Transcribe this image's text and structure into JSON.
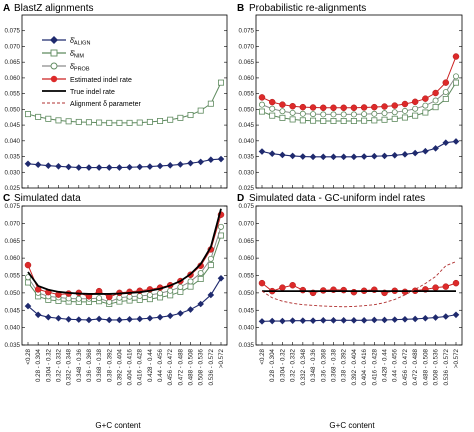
{
  "figure": {
    "xlabel": "G+C content",
    "legend": [
      "δ̂ ALIGN",
      "δ̂ NIM",
      "δ̂ PROB",
      "Estimated indel rate",
      "True indel rate",
      "Alignment δ parameter"
    ]
  },
  "chart_data": [
    {
      "type": "line",
      "panel": "A",
      "title": "BlastZ alignments",
      "ylim": [
        0.025,
        0.08
      ],
      "yticks": [
        "0.025",
        "0.030",
        "0.035",
        "0.040",
        "0.045",
        "0.050",
        "0.055",
        "0.060",
        "0.065",
        "0.070",
        "0.075"
      ],
      "categories": [
        "<0.28",
        "0.28 - 0.304",
        "0.304 - 0.32",
        "0.32 - 0.332",
        "0.332 - 0.348",
        "0.348 - 0.36",
        "0.36 - 0.368",
        "0.368 - 0.38",
        "0.38 - 0.392",
        "0.392 - 0.404",
        "0.404 - 0.416",
        "0.416 - 0.428",
        "0.428 - 0.44",
        "0.44 - 0.456",
        "0.456 - 0.472",
        "0.472 - 0.488",
        "0.488 - 0.508",
        "0.508 - 0.536",
        "0.536 - 0.572",
        ">0.572"
      ],
      "series": [
        {
          "name": "δ̂ ALIGN",
          "values": [
            0.0327,
            0.0324,
            0.0321,
            0.0319,
            0.0317,
            0.0315,
            0.0315,
            0.0315,
            0.0315,
            0.0315,
            0.0316,
            0.0317,
            0.0318,
            0.032,
            0.0322,
            0.0325,
            0.0329,
            0.0333,
            0.034,
            0.0342
          ]
        },
        {
          "name": "δ̂ NIM",
          "values": [
            0.0485,
            0.0476,
            0.047,
            0.0465,
            0.0462,
            0.046,
            0.0459,
            0.0458,
            0.0457,
            0.0457,
            0.0457,
            0.0458,
            0.046,
            0.0463,
            0.0467,
            0.0473,
            0.0482,
            0.0496,
            0.0518,
            0.0585
          ]
        }
      ]
    },
    {
      "type": "line",
      "panel": "B",
      "title": "Probabilistic re-alignments",
      "ylim": [
        0.025,
        0.08
      ],
      "yticks": [
        "0.025",
        "0.030",
        "0.035",
        "0.040",
        "0.045",
        "0.050",
        "0.055",
        "0.060",
        "0.065",
        "0.070",
        "0.075"
      ],
      "categories": [
        "<0.28",
        "0.28 - 0.304",
        "0.304 - 0.32",
        "0.32 - 0.332",
        "0.332 - 0.348",
        "0.348 - 0.36",
        "0.36 - 0.368",
        "0.368 - 0.38",
        "0.38 - 0.392",
        "0.392 - 0.404",
        "0.404 - 0.416",
        "0.416 - 0.428",
        "0.428 - 0.44",
        "0.44 - 0.456",
        "0.456 - 0.472",
        "0.472 - 0.488",
        "0.488 - 0.508",
        "0.508 - 0.536",
        "0.536 - 0.572",
        ">0.572"
      ],
      "series": [
        {
          "name": "δ̂ ALIGN",
          "values": [
            0.0366,
            0.0359,
            0.0355,
            0.0352,
            0.035,
            0.0349,
            0.0349,
            0.0349,
            0.0349,
            0.0349,
            0.035,
            0.0351,
            0.0352,
            0.0354,
            0.0357,
            0.0361,
            0.0367,
            0.0376,
            0.0394,
            0.0398
          ]
        },
        {
          "name": "δ̂ NIM",
          "values": [
            0.0493,
            0.048,
            0.0473,
            0.0468,
            0.0465,
            0.0464,
            0.0463,
            0.0463,
            0.0463,
            0.0463,
            0.0464,
            0.0465,
            0.0467,
            0.047,
            0.0474,
            0.048,
            0.049,
            0.0507,
            0.0533,
            0.0585
          ]
        },
        {
          "name": "δ̂ PROB",
          "values": [
            0.0515,
            0.0502,
            0.0494,
            0.0489,
            0.0486,
            0.0485,
            0.0484,
            0.0484,
            0.0484,
            0.0484,
            0.0485,
            0.0486,
            0.0488,
            0.0491,
            0.0495,
            0.0502,
            0.0512,
            0.0528,
            0.0555,
            0.0605
          ]
        },
        {
          "name": "Estimated indel rate",
          "values": [
            0.0538,
            0.0523,
            0.0515,
            0.051,
            0.0507,
            0.0506,
            0.0505,
            0.0505,
            0.0505,
            0.0505,
            0.0506,
            0.0507,
            0.0509,
            0.0512,
            0.0517,
            0.0524,
            0.0534,
            0.0552,
            0.0585,
            0.0668
          ]
        }
      ]
    },
    {
      "type": "line",
      "panel": "C",
      "title": "Simulated data",
      "ylim": [
        0.035,
        0.075
      ],
      "yticks": [
        "0.035",
        "0.040",
        "0.045",
        "0.050",
        "0.055",
        "0.060",
        "0.065",
        "0.070",
        "0.075"
      ],
      "categories": [
        "<0.28",
        "0.28 - 0.304",
        "0.304 - 0.32",
        "0.32 - 0.332",
        "0.332 - 0.348",
        "0.348 - 0.36",
        "0.36 - 0.368",
        "0.368 - 0.38",
        "0.38 - 0.392",
        "0.392 - 0.404",
        "0.404 - 0.416",
        "0.416 - 0.428",
        "0.428 - 0.44",
        "0.44 - 0.456",
        "0.456 - 0.472",
        "0.472 - 0.488",
        "0.488 - 0.508",
        "0.508 - 0.536",
        "0.536 - 0.572",
        ">0.572"
      ],
      "series": [
        {
          "name": "δ̂ ALIGN",
          "values": [
            0.0462,
            0.0437,
            0.043,
            0.0427,
            0.0424,
            0.0423,
            0.0422,
            0.0425,
            0.0422,
            0.0422,
            0.0424,
            0.0425,
            0.0427,
            0.043,
            0.0434,
            0.0441,
            0.0452,
            0.0468,
            0.0494,
            0.0542
          ]
        },
        {
          "name": "δ̂ NIM",
          "values": [
            0.053,
            0.049,
            0.048,
            0.0477,
            0.0475,
            0.0474,
            0.0474,
            0.0476,
            0.0468,
            0.0475,
            0.0478,
            0.048,
            0.0482,
            0.0487,
            0.0493,
            0.0503,
            0.0518,
            0.054,
            0.058,
            0.0665
          ]
        },
        {
          "name": "δ̂ PROB",
          "values": [
            0.0545,
            0.05,
            0.049,
            0.0487,
            0.0484,
            0.0483,
            0.0483,
            0.0485,
            0.0474,
            0.0486,
            0.0489,
            0.0491,
            0.0494,
            0.0499,
            0.0506,
            0.0517,
            0.0533,
            0.0557,
            0.0598,
            0.069
          ]
        },
        {
          "name": "Estimated indel rate",
          "values": [
            0.058,
            0.051,
            0.0502,
            0.0495,
            0.0498,
            0.05,
            0.049,
            0.0505,
            0.0488,
            0.05,
            0.0503,
            0.0506,
            0.051,
            0.0515,
            0.0522,
            0.0534,
            0.0552,
            0.0578,
            0.0625,
            0.0725
          ]
        },
        {
          "name": "True indel rate",
          "values": [
            0.056,
            0.052,
            0.0509,
            0.0503,
            0.05,
            0.0498,
            0.0497,
            0.0497,
            0.0497,
            0.0498,
            0.05,
            0.0502,
            0.0506,
            0.0512,
            0.0521,
            0.0534,
            0.0554,
            0.0583,
            0.0632,
            0.0742
          ]
        }
      ]
    },
    {
      "type": "line",
      "panel": "D",
      "title": "Simulated data - GC-uniform indel rates",
      "ylim": [
        0.035,
        0.075
      ],
      "yticks": [
        "0.035",
        "0.040",
        "0.045",
        "0.050",
        "0.055",
        "0.060",
        "0.065",
        "0.070",
        "0.075"
      ],
      "categories": [
        "<0.28",
        "0.28 - 0.304",
        "0.304 - 0.32",
        "0.32 - 0.332",
        "0.332 - 0.348",
        "0.348 - 0.36",
        "0.36 - 0.368",
        "0.368 - 0.38",
        "0.38 - 0.392",
        "0.392 - 0.404",
        "0.404 - 0.416",
        "0.416 - 0.428",
        "0.428 - 0.44",
        "0.44 - 0.456",
        "0.456 - 0.472",
        "0.472 - 0.488",
        "0.488 - 0.508",
        "0.508 - 0.536",
        "0.536 - 0.572",
        ">0.572"
      ],
      "series": [
        {
          "name": "δ̂ ALIGN",
          "values": [
            0.0418,
            0.0419,
            0.0419,
            0.042,
            0.042,
            0.042,
            0.0421,
            0.0421,
            0.0421,
            0.0421,
            0.0421,
            0.0422,
            0.0422,
            0.0423,
            0.0424,
            0.0425,
            0.0427,
            0.0429,
            0.0432,
            0.0437
          ]
        },
        {
          "name": "Estimated indel rate",
          "values": [
            0.0528,
            0.0505,
            0.0515,
            0.0522,
            0.0508,
            0.05,
            0.0507,
            0.0509,
            0.0508,
            0.0502,
            0.0506,
            0.0509,
            0.05,
            0.0506,
            0.0503,
            0.0506,
            0.051,
            0.0515,
            0.0518,
            0.0528
          ]
        },
        {
          "name": "True indel rate",
          "values": [
            0.0505,
            0.0505,
            0.0505,
            0.0505,
            0.0505,
            0.0505,
            0.0505,
            0.0505,
            0.0505,
            0.0505,
            0.0505,
            0.0505,
            0.0505,
            0.0505,
            0.0505,
            0.0505,
            0.0505,
            0.0505,
            0.0505,
            0.0505
          ]
        },
        {
          "name": "Alignment δ parameter",
          "values": [
            0.0505,
            0.0486,
            0.0476,
            0.047,
            0.0466,
            0.0464,
            0.0462,
            0.0461,
            0.046,
            0.0461,
            0.0463,
            0.0466,
            0.0472,
            0.0481,
            0.0494,
            0.051,
            0.0527,
            0.0547,
            0.0578,
            0.059
          ]
        }
      ]
    }
  ]
}
